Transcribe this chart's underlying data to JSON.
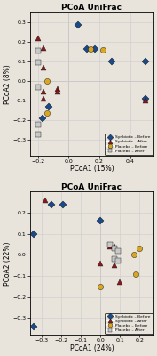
{
  "plot1": {
    "title": "PCoA UniFrac",
    "xlabel": "PCoA1 (15%)",
    "ylabel": "PCoA2 (8%)",
    "xlim": [
      -0.25,
      0.55
    ],
    "ylim": [
      -0.38,
      0.35
    ],
    "xticks": [
      -0.2,
      0.0,
      0.2,
      0.4
    ],
    "yticks": [
      -0.3,
      -0.2,
      -0.1,
      0.0,
      0.1,
      0.2,
      0.3
    ],
    "synbiotic_before": [
      [
        0.06,
        0.285
      ],
      [
        0.12,
        0.165
      ],
      [
        0.17,
        0.165
      ],
      [
        0.28,
        0.1
      ],
      [
        0.5,
        0.1
      ],
      [
        0.5,
        -0.09
      ],
      [
        -0.13,
        -0.13
      ],
      [
        -0.17,
        -0.19
      ]
    ],
    "synbiotic_after": [
      [
        -0.2,
        0.22
      ],
      [
        -0.16,
        0.17
      ],
      [
        -0.16,
        0.07
      ],
      [
        -0.16,
        -0.055
      ],
      [
        -0.16,
        -0.09
      ],
      [
        -0.07,
        -0.04
      ],
      [
        -0.07,
        -0.055
      ],
      [
        0.5,
        -0.1
      ]
    ],
    "placebo_before": [
      [
        0.14,
        0.165
      ],
      [
        0.22,
        0.16
      ],
      [
        -0.14,
        0.0
      ],
      [
        -0.14,
        -0.165
      ]
    ],
    "placebo_after": [
      [
        -0.2,
        0.155
      ],
      [
        -0.2,
        0.095
      ],
      [
        -0.2,
        -0.03
      ],
      [
        -0.2,
        -0.22
      ],
      [
        -0.2,
        -0.27
      ]
    ]
  },
  "plot2": {
    "title": "PCoA UniFrac",
    "xlabel": "PCoA1 (24%)",
    "ylabel": "PCoA2 (22%)",
    "xlim": [
      -0.36,
      0.27
    ],
    "ylim": [
      -0.38,
      0.3
    ],
    "xticks": [
      -0.3,
      -0.2,
      -0.1,
      0.0,
      0.1,
      0.2
    ],
    "yticks": [
      -0.3,
      -0.2,
      -0.1,
      0.0,
      0.1,
      0.2
    ],
    "synbiotic_before": [
      [
        -0.25,
        0.24
      ],
      [
        -0.19,
        0.24
      ],
      [
        -0.34,
        0.1
      ],
      [
        0.0,
        0.16
      ],
      [
        -0.34,
        -0.34
      ]
    ],
    "synbiotic_after": [
      [
        -0.28,
        0.26
      ],
      [
        0.05,
        0.04
      ],
      [
        0.07,
        0.04
      ],
      [
        0.0,
        -0.04
      ],
      [
        0.07,
        -0.05
      ],
      [
        0.1,
        -0.13
      ]
    ],
    "placebo_before": [
      [
        0.17,
        0.0
      ],
      [
        0.2,
        0.03
      ],
      [
        0.18,
        -0.09
      ],
      [
        0.0,
        -0.15
      ]
    ],
    "placebo_after": [
      [
        0.05,
        0.05
      ],
      [
        0.07,
        0.03
      ],
      [
        0.09,
        0.02
      ],
      [
        0.07,
        -0.02
      ],
      [
        0.09,
        -0.03
      ]
    ]
  },
  "colors": {
    "synbiotic_before": "#1a4a8a",
    "synbiotic_after": "#8B1A1A",
    "placebo_before": "#DAA520",
    "placebo_after": "#C8C8C8"
  },
  "legend_labels": [
    "Synbiotic – Before",
    "Synbiotic – After",
    "Placebo – Before",
    "Placebo – After"
  ],
  "bg_color": "#E8E4DC",
  "marker_size": 4.5
}
